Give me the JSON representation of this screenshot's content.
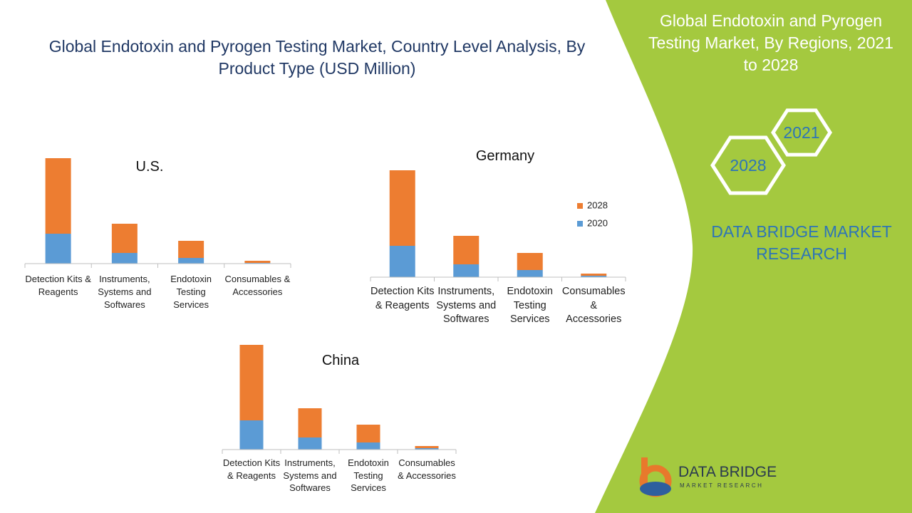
{
  "header": {
    "title": "Global Endotoxin and Pyrogen Testing Market, Country Level Analysis, By Product Type (USD Million)"
  },
  "chart_data": [
    {
      "type": "bar",
      "stacked": true,
      "title": "U.S.",
      "categories": [
        "Detection Kits & Reagents",
        "Instruments, Systems and Softwares",
        "Endotoxin Testing Services",
        "Consumables & Accessories"
      ],
      "series": [
        {
          "name": "2020",
          "color": "#5b9bd5",
          "values": [
            42,
            15,
            8,
            1
          ]
        },
        {
          "name": "2028",
          "color": "#ed7d31",
          "values": [
            106,
            41,
            24,
            3
          ]
        }
      ],
      "ylim": [
        0,
        150
      ],
      "legend": false
    },
    {
      "type": "bar",
      "stacked": true,
      "title": "Germany",
      "categories": [
        "Detection Kits & Reagents",
        "Instruments, Systems and Softwares",
        "Endotoxin Testing Services",
        "Consumables & Accessories"
      ],
      "series": [
        {
          "name": "2020",
          "color": "#5b9bd5",
          "values": [
            44,
            18,
            10,
            2
          ]
        },
        {
          "name": "2028",
          "color": "#ed7d31",
          "values": [
            106,
            40,
            24,
            3
          ]
        }
      ],
      "ylim": [
        0,
        150
      ],
      "legend": true
    },
    {
      "type": "bar",
      "stacked": true,
      "title": "China",
      "categories": [
        "Detection Kits & Reagents",
        "Instruments, Systems and Softwares",
        "Endotoxin Testing Services",
        "Consumables & Accessories"
      ],
      "series": [
        {
          "name": "2020",
          "color": "#5b9bd5",
          "values": [
            41,
            17,
            10,
            2
          ]
        },
        {
          "name": "2028",
          "color": "#ed7d31",
          "values": [
            106,
            41,
            25,
            3
          ]
        }
      ],
      "ylim": [
        0,
        150
      ],
      "legend": false
    }
  ],
  "side_panel": {
    "title": "Global Endotoxin and Pyrogen Testing Market, By Regions, 2021 to 2028",
    "hexagons": [
      "2021",
      "2028"
    ],
    "brand": "DATA BRIDGE MARKET RESEARCH"
  },
  "logo": {
    "name": "DATA BRIDGE",
    "tagline": "MARKET RESEARCH"
  }
}
